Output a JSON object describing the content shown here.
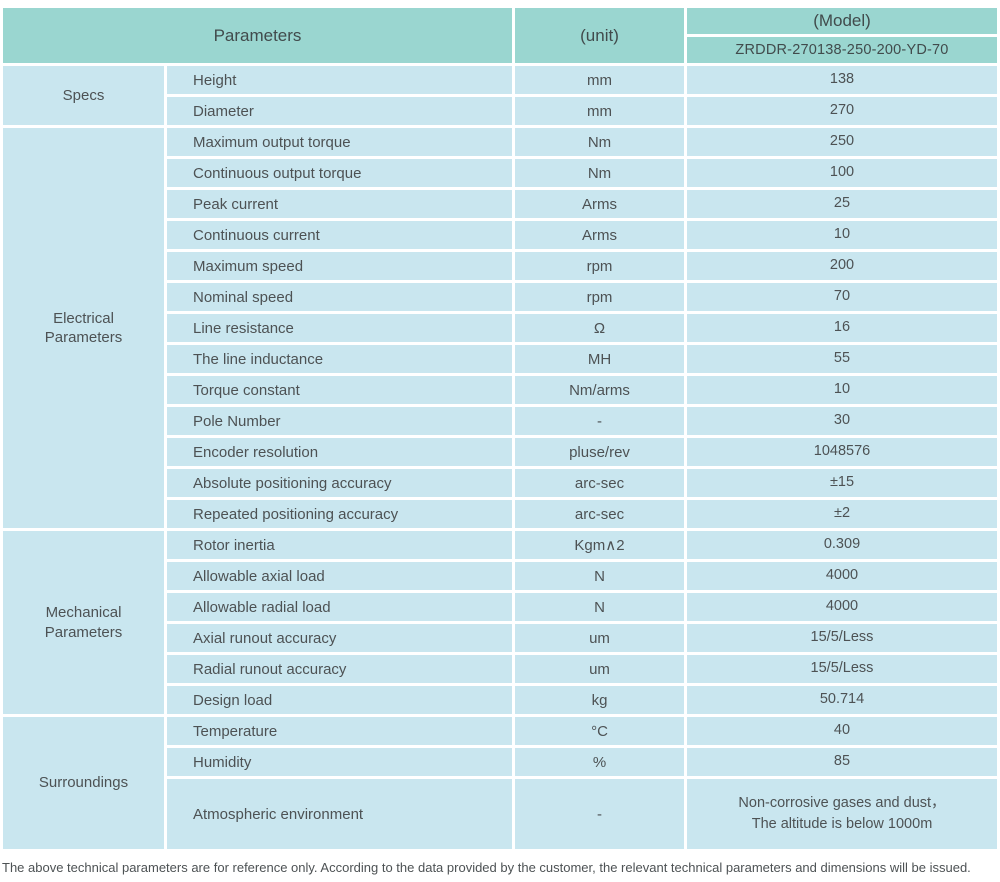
{
  "header": {
    "parameters": "Parameters",
    "unit": "(unit)",
    "model": "(Model)",
    "model_number": "ZRDDR-270138-250-200-YD-70"
  },
  "groups": [
    {
      "label": "Specs"
    },
    {
      "label": "Electrical\nParameters"
    },
    {
      "label": "Mechanical\nParameters"
    },
    {
      "label": "Surroundings"
    }
  ],
  "rows": [
    {
      "param": "Height",
      "unit": "mm",
      "value": "138"
    },
    {
      "param": "Diameter",
      "unit": "mm",
      "value": "270"
    },
    {
      "param": "Maximum output torque",
      "unit": "Nm",
      "value": "250"
    },
    {
      "param": "Continuous output torque",
      "unit": "Nm",
      "value": "100"
    },
    {
      "param": "Peak current",
      "unit": "Arms",
      "value": "25"
    },
    {
      "param": "Continuous current",
      "unit": "Arms",
      "value": "10"
    },
    {
      "param": "Maximum speed",
      "unit": "rpm",
      "value": "200"
    },
    {
      "param": "Nominal speed",
      "unit": "rpm",
      "value": "70"
    },
    {
      "param": "Line resistance",
      "unit": "Ω",
      "value": "16"
    },
    {
      "param": "The line inductance",
      "unit": "MH",
      "value": "55"
    },
    {
      "param": "Torque constant",
      "unit": "Nm/arms",
      "value": "10"
    },
    {
      "param": "Pole Number",
      "unit": "-",
      "value": "30"
    },
    {
      "param": "Encoder resolution",
      "unit": "pluse/rev",
      "value": "1048576"
    },
    {
      "param": "Absolute positioning accuracy",
      "unit": "arc-sec",
      "value": "±15"
    },
    {
      "param": "Repeated positioning accuracy",
      "unit": "arc-sec",
      "value": "±2"
    },
    {
      "param": "Rotor inertia",
      "unit": "Kgm∧2",
      "value": "0.309"
    },
    {
      "param": "Allowable axial load",
      "unit": "N",
      "value": "4000"
    },
    {
      "param": "Allowable radial load",
      "unit": "N",
      "value": "4000"
    },
    {
      "param": "Axial runout accuracy",
      "unit": "um",
      "value": "15/5/Less"
    },
    {
      "param": "Radial runout accuracy",
      "unit": "um",
      "value": "15/5/Less"
    },
    {
      "param": "Design load",
      "unit": "kg",
      "value": "50.714"
    },
    {
      "param": "Temperature",
      "unit": "°C",
      "value": "40"
    },
    {
      "param": "Humidity",
      "unit": "%",
      "value": "85"
    },
    {
      "param": "Atmospheric environment",
      "unit": "-",
      "value": "Non-corrosive gases and dust，\nThe altitude is below 1000m"
    }
  ],
  "footer": {
    "note": "The above technical parameters are for reference only. According to the data provided by the customer, the relevant technical parameters and dimensions will be issued."
  },
  "colors": {
    "header_bg": "#9ad6d0",
    "row_bg": "#c9e6ef",
    "text": "#4d5254",
    "gap": "#ffffff"
  }
}
